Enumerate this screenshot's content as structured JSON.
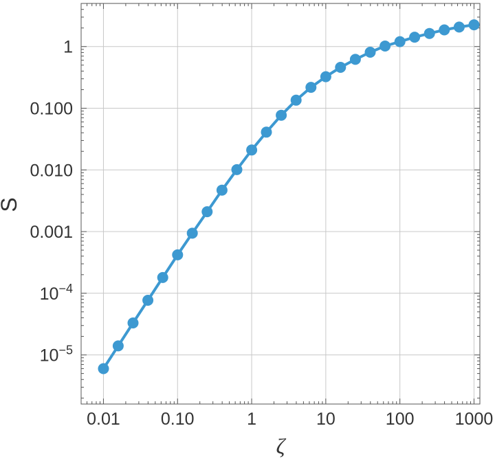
{
  "chart_data": {
    "type": "line",
    "xlabel": "ζ",
    "ylabel": "S",
    "x_scale": "log",
    "y_scale": "log",
    "xlim": [
      0.005,
      1200
    ],
    "ylim": [
      1.6e-06,
      5.0
    ],
    "grid": true,
    "x_ticks": [
      {
        "value": 0.01,
        "label": "0.01"
      },
      {
        "value": 0.1,
        "label": "0.10"
      },
      {
        "value": 1,
        "label": "1"
      },
      {
        "value": 10,
        "label": "10"
      },
      {
        "value": 100,
        "label": "100"
      },
      {
        "value": 1000,
        "label": "1000"
      }
    ],
    "y_ticks": [
      {
        "value": 1e-05,
        "base": "10",
        "exp": "−5"
      },
      {
        "value": 0.0001,
        "base": "10",
        "exp": "−4"
      },
      {
        "value": 0.001,
        "label": "0.001"
      },
      {
        "value": 0.01,
        "label": "0.010"
      },
      {
        "value": 0.1,
        "label": "0.100"
      },
      {
        "value": 1,
        "label": "1"
      }
    ],
    "series": [
      {
        "color": "#3d99d1",
        "x": [
          0.01,
          0.0158,
          0.0251,
          0.0398,
          0.0631,
          0.1,
          0.158,
          0.251,
          0.398,
          0.631,
          1,
          1.58,
          2.51,
          3.98,
          6.31,
          10,
          15.8,
          25.1,
          39.8,
          63.1,
          100,
          158,
          251,
          398,
          631,
          1000
        ],
        "y": [
          6e-06,
          1.4e-05,
          3.3e-05,
          7.7e-05,
          0.00018,
          0.00042,
          0.00094,
          0.0021,
          0.0047,
          0.0101,
          0.021,
          0.041,
          0.077,
          0.135,
          0.218,
          0.325,
          0.46,
          0.62,
          0.81,
          1.02,
          1.2,
          1.42,
          1.63,
          1.86,
          2.07,
          2.25
        ]
      }
    ]
  }
}
